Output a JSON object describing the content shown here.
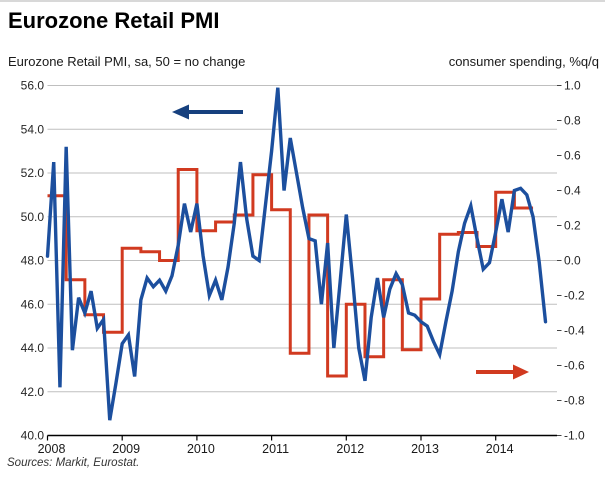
{
  "header": {
    "title": "Eurozone Retail PMI",
    "subtitle_left": "Eurozone Retail PMI, sa, 50 = no change",
    "subtitle_right": "consumer spending, %q/q"
  },
  "footer": {
    "source": "Sources: Markit, Eurostat."
  },
  "chart_data": {
    "type": "line",
    "title": "Eurozone Retail PMI",
    "grid": true,
    "legend": false,
    "x_axis": {
      "tick_labels": [
        "2008",
        "2009",
        "2010",
        "2011",
        "2012",
        "2013",
        "2014"
      ]
    },
    "left_axis": {
      "label": "Eurozone Retail PMI, sa, 50 = no change",
      "min": 40.0,
      "max": 56.0,
      "tick_step": 2.0,
      "tick_labels": [
        "56.0",
        "54.0",
        "52.0",
        "50.0",
        "48.0",
        "46.0",
        "44.0",
        "42.0",
        "40.0"
      ]
    },
    "right_axis": {
      "label": "consumer spending, %q/q",
      "min": -1.0,
      "max": 1.0,
      "tick_step": 0.2,
      "tick_labels": [
        "1.0",
        "0.8",
        "0.6",
        "0.4",
        "0.2",
        "0.0",
        "-0.2",
        "-0.4",
        "-0.6",
        "-0.8",
        "-1.0"
      ]
    },
    "series": [
      {
        "name": "Eurozone Retail PMI",
        "axis": "left",
        "frequency": "monthly",
        "start": "2008-01",
        "end": "2014-09",
        "color": "#1c4f9e",
        "values": [
          48.2,
          52.5,
          42.2,
          53.2,
          43.9,
          46.3,
          45.6,
          46.6,
          44.9,
          45.3,
          40.7,
          42.4,
          44.2,
          44.6,
          42.7,
          46.2,
          47.2,
          46.8,
          47.1,
          46.6,
          47.3,
          48.7,
          50.6,
          49.3,
          50.6,
          48.2,
          46.4,
          47.1,
          46.2,
          47.7,
          49.7,
          52.5,
          49.9,
          48.2,
          48.0,
          50.5,
          53.0,
          55.9,
          51.2,
          53.6,
          52.0,
          50.4,
          49.0,
          48.9,
          46.0,
          48.8,
          44.0,
          47.0,
          50.1,
          47.2,
          44.0,
          42.5,
          45.4,
          47.2,
          45.4,
          46.7,
          47.4,
          46.9,
          45.6,
          45.5,
          45.2,
          45.0,
          44.3,
          43.7,
          45.2,
          46.6,
          48.4,
          49.7,
          50.5,
          49.0,
          47.6,
          47.9,
          49.3,
          50.8,
          49.3,
          51.2,
          51.3,
          51.0,
          50.0,
          47.9,
          45.2
        ]
      },
      {
        "name": "consumer spending, %q/q",
        "axis": "right",
        "frequency": "quarterly",
        "start": "2008-Q1",
        "end": "2014-Q2",
        "color": "#d13a20",
        "values": [
          0.37,
          -0.11,
          -0.31,
          -0.41,
          0.07,
          0.05,
          0.0,
          0.52,
          0.17,
          0.22,
          0.26,
          0.49,
          0.29,
          -0.53,
          0.26,
          -0.66,
          -0.25,
          -0.55,
          -0.11,
          -0.51,
          -0.22,
          0.15,
          0.16,
          0.08,
          0.39,
          0.3
        ]
      }
    ],
    "annotations": [
      {
        "type": "arrow",
        "direction": "left",
        "refers_to": "left axis (Retail PMI line)",
        "color": "#16407e"
      },
      {
        "type": "arrow",
        "direction": "right",
        "refers_to": "right axis (consumer spending line)",
        "color": "#d13a20"
      }
    ]
  }
}
